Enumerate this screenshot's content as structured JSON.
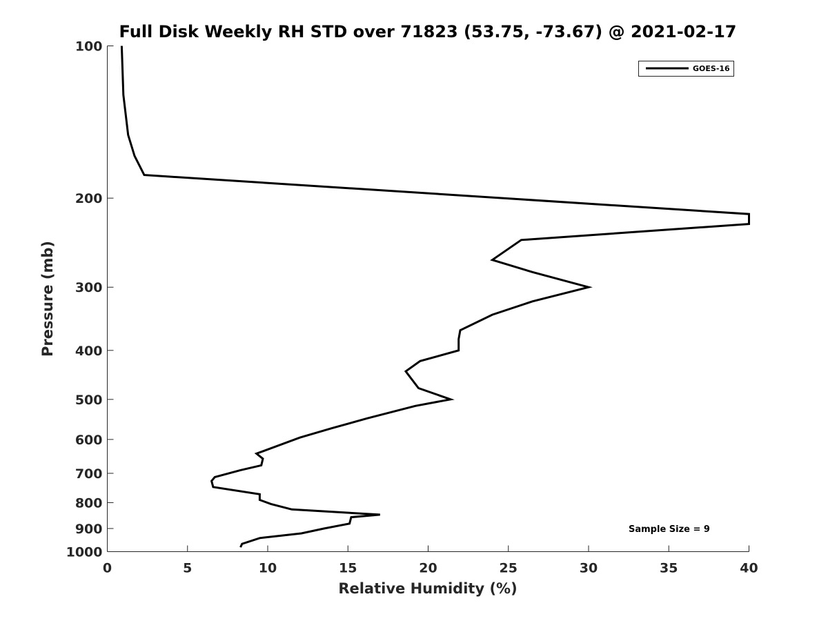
{
  "chart_data": {
    "type": "line",
    "title": "Full Disk Weekly RH STD over 71823 (53.75, -73.67) @ 2021-02-17",
    "xlabel": "Relative Humidity (%)",
    "ylabel": "Pressure (mb)",
    "xlim": [
      0,
      40
    ],
    "ylim": [
      100,
      1000
    ],
    "y_scale": "log",
    "y_reversed": true,
    "x_ticks": [
      0,
      5,
      10,
      15,
      20,
      25,
      30,
      35,
      40
    ],
    "y_ticks": [
      100,
      200,
      300,
      400,
      500,
      600,
      700,
      800,
      900,
      1000
    ],
    "grid": false,
    "legend_position": "top-right",
    "series": [
      {
        "name": "GOES-16",
        "color": "#000000",
        "points": [
          [
            0.9,
            100
          ],
          [
            1.0,
            125
          ],
          [
            1.3,
            150
          ],
          [
            1.7,
            165
          ],
          [
            2.3,
            180
          ],
          [
            40,
            215
          ],
          [
            40,
            225
          ],
          [
            25.8,
            242
          ],
          [
            24.0,
            265
          ],
          [
            26.5,
            280
          ],
          [
            30.0,
            300
          ],
          [
            26.5,
            320
          ],
          [
            24.0,
            340
          ],
          [
            22.0,
            365
          ],
          [
            21.9,
            380
          ],
          [
            21.9,
            400
          ],
          [
            19.5,
            420
          ],
          [
            18.6,
            440
          ],
          [
            19.4,
            475
          ],
          [
            21.4,
            500
          ],
          [
            19.2,
            515
          ],
          [
            16.2,
            545
          ],
          [
            14.0,
            570
          ],
          [
            12.0,
            595
          ],
          [
            9.3,
            640
          ],
          [
            9.7,
            655
          ],
          [
            9.6,
            675
          ],
          [
            8.3,
            690
          ],
          [
            6.7,
            712
          ],
          [
            6.5,
            725
          ],
          [
            6.6,
            745
          ],
          [
            9.5,
            770
          ],
          [
            9.5,
            790
          ],
          [
            10.2,
            805
          ],
          [
            11.5,
            825
          ],
          [
            17.0,
            845
          ],
          [
            15.2,
            855
          ],
          [
            15.1,
            880
          ],
          [
            13.5,
            900
          ],
          [
            12.1,
            920
          ],
          [
            9.5,
            940
          ],
          [
            8.4,
            965
          ],
          [
            8.3,
            980
          ]
        ]
      }
    ],
    "annotations": [
      "Sample Size = 9"
    ]
  }
}
